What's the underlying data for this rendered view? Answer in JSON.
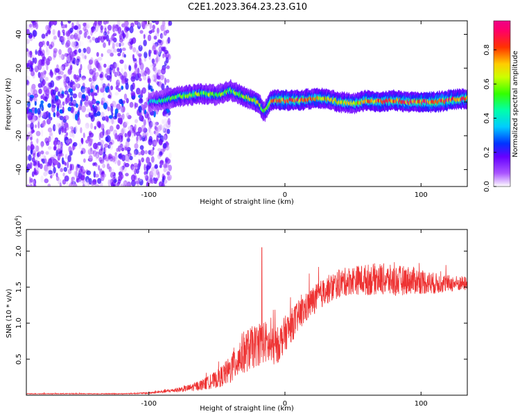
{
  "title": "C2E1.2023.364.23.23.G10",
  "chart_data": [
    {
      "type": "heatmap",
      "xlabel": "Height of straight line (km)",
      "ylabel": "Frequency (Hz)",
      "xlim": [
        -190,
        134
      ],
      "ylim": [
        -50,
        48
      ],
      "xticks": [
        -100,
        0,
        100
      ],
      "yticks": [
        -40,
        -20,
        0,
        20,
        40
      ],
      "colorbar": {
        "label": "Normalized spectral amplitude",
        "range": [
          0,
          0.97
        ],
        "ticks": [
          0.0,
          0.2,
          0.4,
          0.6,
          0.8
        ],
        "colormap": [
          "#ffffff",
          "#7700ff",
          "#0044ff",
          "#00ffff",
          "#00ff00",
          "#ffff00",
          "#ff0000",
          "#ff0088"
        ]
      },
      "ridge": {
        "description_points_x": [
          -100,
          -90,
          -80,
          -70,
          -60,
          -50,
          -40,
          -30,
          -20,
          -15,
          -10,
          0,
          10,
          20,
          30,
          40,
          50,
          60,
          70,
          80,
          90,
          100,
          110,
          120,
          134
        ],
        "frequency_hz": [
          0,
          1,
          3,
          4,
          5,
          4,
          7,
          3,
          0,
          -6,
          1,
          1,
          1,
          2,
          2,
          0,
          -1,
          1,
          0,
          1,
          0,
          0,
          0,
          1,
          2
        ],
        "peak_amplitude": [
          0.35,
          0.45,
          0.55,
          0.6,
          0.6,
          0.55,
          0.55,
          0.6,
          0.65,
          0.5,
          0.75,
          0.85,
          0.8,
          0.75,
          0.7,
          0.7,
          0.7,
          0.75,
          0.8,
          0.8,
          0.85,
          0.85,
          0.85,
          0.85,
          0.8
        ]
      },
      "noise_region_x": [
        -190,
        -90
      ]
    },
    {
      "type": "line",
      "xlabel": "Height of straight line (km)",
      "ylabel": "SNR (10 * v/v)",
      "yscale_label": "(x10",
      "yscale_exponent": "4",
      "xlim": [
        -190,
        134
      ],
      "ylim": [
        0,
        2.3
      ],
      "xticks": [
        -100,
        0,
        100
      ],
      "yticks": [
        0.5,
        1.0,
        1.5,
        2.0
      ],
      "color": "#ee3333",
      "series": [
        {
          "x": [
            -190,
            -150,
            -120,
            -100,
            -90,
            -80,
            -70,
            -60,
            -50,
            -40,
            -35,
            -30,
            -25,
            -20,
            -15,
            -10,
            -5,
            0,
            10,
            20,
            30,
            40,
            50,
            60,
            70,
            80,
            90,
            100,
            110,
            120,
            134
          ],
          "y": [
            0.02,
            0.02,
            0.02,
            0.03,
            0.05,
            0.07,
            0.1,
            0.15,
            0.22,
            0.35,
            0.5,
            0.6,
            0.65,
            0.7,
            0.75,
            0.65,
            0.7,
            0.85,
            1.1,
            1.3,
            1.45,
            1.55,
            1.6,
            1.6,
            1.62,
            1.58,
            1.6,
            1.58,
            1.55,
            1.55,
            1.55
          ],
          "noise_amplitude": [
            0.005,
            0.005,
            0.005,
            0.01,
            0.02,
            0.03,
            0.05,
            0.08,
            0.12,
            0.2,
            0.28,
            0.3,
            0.3,
            0.3,
            0.3,
            0.28,
            0.25,
            0.25,
            0.22,
            0.2,
            0.2,
            0.2,
            0.2,
            0.22,
            0.22,
            0.22,
            0.2,
            0.18,
            0.15,
            0.12,
            0.1
          ]
        }
      ],
      "annotations": {
        "spike_x": -17,
        "spike_y": 2.05
      }
    }
  ]
}
